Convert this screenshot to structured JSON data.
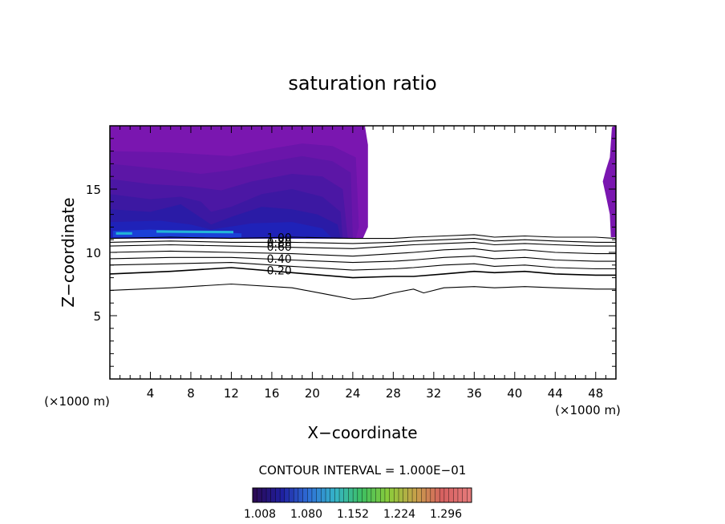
{
  "chart_data": {
    "type": "contour",
    "title": "saturation ratio",
    "xlabel": "X−coordinate",
    "ylabel": "Z−coordinate",
    "x_unit_left": "(×1000 m)",
    "x_unit_right": "(×1000 m)",
    "xlim": [
      0,
      50
    ],
    "ylim": [
      0,
      20
    ],
    "x_ticks": [
      4,
      8,
      12,
      16,
      20,
      24,
      28,
      32,
      36,
      40,
      44,
      48
    ],
    "y_ticks": [
      5,
      10,
      15
    ],
    "x_tick_labels": [
      "4",
      "8",
      "12",
      "16",
      "20",
      "24",
      "28",
      "32",
      "36",
      "40",
      "44",
      "48"
    ],
    "y_tick_labels": [
      "5",
      "10",
      "15"
    ],
    "contour_interval_text": "CONTOUR INTERVAL = 1.000E−01",
    "colorbar": {
      "labels": [
        "1.008",
        "1.080",
        "1.152",
        "1.224",
        "1.296"
      ],
      "colors": [
        "#2a0a55",
        "#1f1fa0",
        "#2f6fd8",
        "#35b4c8",
        "#3ec060",
        "#8ccc3a",
        "#c7a04a",
        "#d66060",
        "#e57a7a"
      ]
    },
    "contour_lines": [
      {
        "label": "1.00",
        "points": [
          [
            0,
            11.1
          ],
          [
            6,
            11.2
          ],
          [
            12,
            11.1
          ],
          [
            18,
            11.2
          ],
          [
            24,
            11.1
          ],
          [
            28,
            11.1
          ],
          [
            30,
            11.2
          ],
          [
            33,
            11.3
          ],
          [
            36,
            11.4
          ],
          [
            38,
            11.2
          ],
          [
            41,
            11.3
          ],
          [
            44,
            11.2
          ],
          [
            48,
            11.2
          ],
          [
            50,
            11.1
          ]
        ]
      },
      {
        "label": "0.80",
        "points": [
          [
            0,
            10.8
          ],
          [
            6,
            10.9
          ],
          [
            12,
            10.8
          ],
          [
            18,
            10.8
          ],
          [
            24,
            10.7
          ],
          [
            28,
            10.8
          ],
          [
            30,
            10.9
          ],
          [
            33,
            11.0
          ],
          [
            36,
            11.1
          ],
          [
            38,
            10.9
          ],
          [
            41,
            11.0
          ],
          [
            44,
            10.9
          ],
          [
            48,
            10.8
          ],
          [
            50,
            10.8
          ]
        ]
      },
      {
        "label": "0.60",
        "points": [
          [
            0,
            10.5
          ],
          [
            6,
            10.6
          ],
          [
            12,
            10.5
          ],
          [
            18,
            10.4
          ],
          [
            24,
            10.3
          ],
          [
            28,
            10.5
          ],
          [
            30,
            10.6
          ],
          [
            33,
            10.7
          ],
          [
            36,
            10.8
          ],
          [
            38,
            10.6
          ],
          [
            41,
            10.7
          ],
          [
            44,
            10.6
          ],
          [
            48,
            10.5
          ],
          [
            50,
            10.5
          ]
        ]
      },
      {
        "label": "",
        "points": [
          [
            0,
            10.0
          ],
          [
            6,
            10.1
          ],
          [
            12,
            10.0
          ],
          [
            18,
            9.9
          ],
          [
            24,
            9.7
          ],
          [
            28,
            9.9
          ],
          [
            30,
            10.0
          ],
          [
            33,
            10.2
          ],
          [
            36,
            10.3
          ],
          [
            38,
            10.1
          ],
          [
            41,
            10.2
          ],
          [
            44,
            10.0
          ],
          [
            48,
            9.9
          ],
          [
            50,
            9.9
          ]
        ]
      },
      {
        "label": "0.40",
        "points": [
          [
            0,
            9.5
          ],
          [
            6,
            9.6
          ],
          [
            12,
            9.6
          ],
          [
            18,
            9.4
          ],
          [
            24,
            9.2
          ],
          [
            28,
            9.3
          ],
          [
            30,
            9.4
          ],
          [
            33,
            9.6
          ],
          [
            36,
            9.7
          ],
          [
            38,
            9.5
          ],
          [
            41,
            9.6
          ],
          [
            44,
            9.4
          ],
          [
            48,
            9.3
          ],
          [
            50,
            9.3
          ]
        ]
      },
      {
        "label": "",
        "points": [
          [
            0,
            9.0
          ],
          [
            6,
            9.1
          ],
          [
            12,
            9.2
          ],
          [
            18,
            8.9
          ],
          [
            24,
            8.6
          ],
          [
            28,
            8.7
          ],
          [
            30,
            8.8
          ],
          [
            33,
            9.0
          ],
          [
            36,
            9.1
          ],
          [
            38,
            8.9
          ],
          [
            41,
            9.0
          ],
          [
            44,
            8.8
          ],
          [
            48,
            8.7
          ],
          [
            50,
            8.7
          ]
        ]
      },
      {
        "label": "0.20",
        "points": [
          [
            0,
            8.3
          ],
          [
            6,
            8.5
          ],
          [
            12,
            8.8
          ],
          [
            18,
            8.4
          ],
          [
            24,
            8.0
          ],
          [
            28,
            8.1
          ],
          [
            30,
            8.1
          ],
          [
            33,
            8.3
          ],
          [
            36,
            8.5
          ],
          [
            38,
            8.4
          ],
          [
            41,
            8.5
          ],
          [
            44,
            8.3
          ],
          [
            48,
            8.2
          ],
          [
            50,
            8.2
          ]
        ]
      },
      {
        "label": "",
        "points": [
          [
            0,
            7.0
          ],
          [
            6,
            7.2
          ],
          [
            12,
            7.5
          ],
          [
            18,
            7.2
          ],
          [
            22,
            6.6
          ],
          [
            24,
            6.3
          ],
          [
            26,
            6.4
          ],
          [
            28,
            6.8
          ],
          [
            30,
            7.1
          ],
          [
            31,
            6.8
          ],
          [
            33,
            7.2
          ],
          [
            36,
            7.3
          ],
          [
            38,
            7.2
          ],
          [
            41,
            7.3
          ],
          [
            44,
            7.2
          ],
          [
            48,
            7.1
          ],
          [
            50,
            7.1
          ]
        ]
      }
    ],
    "filled_regions": [
      {
        "color": "#7a16b0",
        "points": [
          [
            0,
            20
          ],
          [
            25.2,
            20
          ],
          [
            25.5,
            18.5
          ],
          [
            25.5,
            12
          ],
          [
            25,
            11.1
          ],
          [
            0,
            11.1
          ]
        ]
      },
      {
        "color": "#6a15aa",
        "points": [
          [
            0,
            18
          ],
          [
            6,
            17.9
          ],
          [
            12,
            17.6
          ],
          [
            16,
            18.2
          ],
          [
            19,
            18.6
          ],
          [
            22,
            18.4
          ],
          [
            24.3,
            17.5
          ],
          [
            24.6,
            12
          ],
          [
            24.3,
            11.1
          ],
          [
            0,
            11.1
          ]
        ]
      },
      {
        "color": "#5c16a6",
        "points": [
          [
            0,
            17
          ],
          [
            5,
            16.6
          ],
          [
            9,
            16.2
          ],
          [
            12,
            16.5
          ],
          [
            16,
            17.2
          ],
          [
            19,
            17.6
          ],
          [
            22,
            17.2
          ],
          [
            23.8,
            16.3
          ],
          [
            24,
            11.1
          ],
          [
            0,
            11.1
          ]
        ]
      },
      {
        "color": "#4b17a4",
        "points": [
          [
            0,
            15.8
          ],
          [
            4,
            15.4
          ],
          [
            8,
            15.2
          ],
          [
            11,
            14.9
          ],
          [
            14,
            15.6
          ],
          [
            18,
            16.2
          ],
          [
            21,
            16
          ],
          [
            23,
            15
          ],
          [
            23.5,
            11.1
          ],
          [
            0,
            11.1
          ]
        ]
      },
      {
        "color": "#3c18a2",
        "points": [
          [
            0,
            14.6
          ],
          [
            4,
            14.2
          ],
          [
            7,
            14.4
          ],
          [
            9,
            14.0
          ],
          [
            10,
            13.2
          ],
          [
            12,
            13.6
          ],
          [
            15,
            14.6
          ],
          [
            18,
            15.0
          ],
          [
            21,
            14.4
          ],
          [
            22.8,
            13.2
          ],
          [
            23,
            11.1
          ],
          [
            0,
            11.1
          ]
        ]
      },
      {
        "color": "#2a1ba6",
        "points": [
          [
            0,
            13.4
          ],
          [
            4,
            13.2
          ],
          [
            7,
            13.8
          ],
          [
            8.5,
            13
          ],
          [
            10,
            12.2
          ],
          [
            12,
            12.8
          ],
          [
            15,
            13.6
          ],
          [
            18,
            13.4
          ],
          [
            20.5,
            13
          ],
          [
            22.5,
            12.2
          ],
          [
            22.8,
            11.1
          ],
          [
            0,
            11.1
          ]
        ]
      },
      {
        "color": "#1f22b8",
        "points": [
          [
            0,
            12.4
          ],
          [
            5,
            12.5
          ],
          [
            8,
            12.2
          ],
          [
            10,
            11.8
          ],
          [
            14,
            12.3
          ],
          [
            18,
            12.4
          ],
          [
            21,
            11.9
          ],
          [
            22,
            11.1
          ],
          [
            0,
            11.1
          ]
        ]
      },
      {
        "color": "#1a40d8",
        "points": [
          [
            0.3,
            11.7
          ],
          [
            4,
            11.8
          ],
          [
            8,
            11.7
          ],
          [
            11,
            11.6
          ],
          [
            13,
            11.5
          ],
          [
            13,
            11.2
          ],
          [
            0.3,
            11.2
          ]
        ]
      },
      {
        "color": "#22b4d8",
        "points": [
          [
            0.6,
            11.6
          ],
          [
            2.2,
            11.6
          ],
          [
            2.2,
            11.4
          ],
          [
            0.6,
            11.4
          ]
        ]
      },
      {
        "color": "#22b4d8",
        "points": [
          [
            4.6,
            11.75
          ],
          [
            12.2,
            11.7
          ],
          [
            12.2,
            11.5
          ],
          [
            4.6,
            11.55
          ]
        ]
      },
      {
        "color": "#7a16b0",
        "points": [
          [
            50,
            20
          ],
          [
            49.6,
            19.9
          ],
          [
            49.4,
            17.5
          ],
          [
            49.0,
            16.5
          ],
          [
            48.7,
            15.6
          ],
          [
            49.0,
            14.5
          ],
          [
            49.4,
            13
          ],
          [
            49.5,
            11.2
          ],
          [
            50,
            11.2
          ]
        ]
      }
    ]
  }
}
